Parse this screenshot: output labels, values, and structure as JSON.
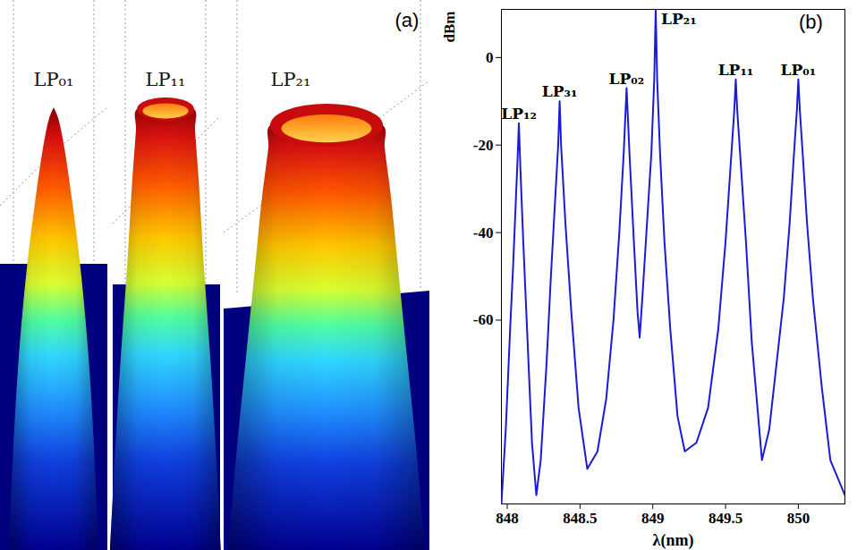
{
  "illustration": {
    "label": "(a)",
    "modes": [
      "LP₀₁",
      "LP₁₁",
      "LP₂₁"
    ]
  },
  "chart_data": {
    "type": "line",
    "label": "(b)",
    "x_label": "λ(nm)",
    "y_label": "dBm",
    "color": "#1a1adb",
    "x": [
      847.96,
      847.99,
      848.02,
      848.04,
      848.06,
      848.07,
      848.08,
      848.09,
      848.11,
      848.14,
      848.17,
      848.2,
      848.23,
      848.27,
      848.3,
      848.33,
      848.35,
      848.36,
      848.37,
      848.4,
      848.44,
      848.49,
      848.55,
      848.62,
      848.68,
      848.73,
      848.77,
      848.8,
      848.82,
      848.84,
      848.87,
      848.895,
      848.91,
      848.93,
      848.96,
      848.99,
      849.01,
      849.02,
      849.03,
      849.05,
      849.08,
      849.12,
      849.17,
      849.22,
      849.3,
      849.38,
      849.45,
      849.5,
      849.54,
      849.56,
      849.57,
      849.58,
      849.6,
      849.64,
      849.68,
      849.75,
      849.8,
      849.85,
      849.9,
      849.94,
      849.97,
      849.99,
      850,
      850.01,
      850.03,
      850.06,
      850.1,
      850.16,
      850.22,
      850.32
    ],
    "values": [
      -102,
      -85,
      -62,
      -48,
      -32,
      -24,
      -15,
      -25,
      -42,
      -65,
      -88,
      -100,
      -92,
      -70,
      -50,
      -32,
      -20,
      -10,
      -20,
      -38,
      -58,
      -80,
      -94,
      -90,
      -78,
      -60,
      -40,
      -22,
      -7,
      -22,
      -42,
      -58,
      -64,
      -54,
      -38,
      -22,
      -5,
      11,
      -5,
      -22,
      -42,
      -62,
      -82,
      -90,
      -88,
      -80,
      -62,
      -42,
      -22,
      -12,
      -5,
      -12,
      -22,
      -42,
      -65,
      -92,
      -85,
      -70,
      -55,
      -38,
      -22,
      -12,
      -5,
      -12,
      -22,
      -38,
      -55,
      -75,
      -92,
      -100
    ],
    "xlim": [
      847.96,
      850.32
    ],
    "ylim": [
      -102,
      11
    ],
    "xticks": [
      848,
      848.5,
      849,
      849.5,
      850
    ],
    "yticks": [
      -60,
      -40,
      -20,
      0
    ],
    "annotations": [
      {
        "text": "LP₁₂",
        "x": 848.08
      },
      {
        "text": "LP₃₁",
        "x": 848.36
      },
      {
        "text": "LP₀₂",
        "x": 848.82
      },
      {
        "text": "LP₂₁",
        "x": 849.02
      },
      {
        "text": "LP₁₁",
        "x": 849.57
      },
      {
        "text": "LP₀₁",
        "x": 850
      }
    ]
  }
}
